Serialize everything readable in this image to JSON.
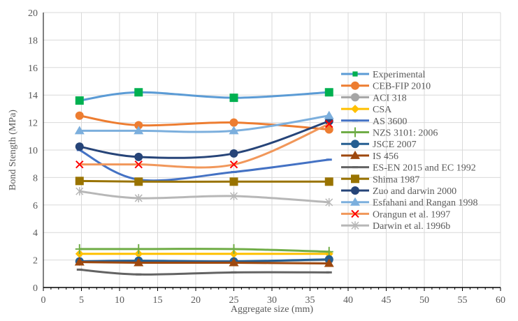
{
  "chart_data": {
    "type": "line",
    "xlabel": "Aggregate size (mm)",
    "ylabel": "Bond Stength (MPa)",
    "xlim": [
      0,
      60
    ],
    "ylim": [
      0,
      20
    ],
    "xticks": [
      0,
      5,
      10,
      15,
      20,
      25,
      30,
      35,
      40,
      45,
      50,
      55,
      60
    ],
    "yticks": [
      0,
      2,
      4,
      6,
      8,
      10,
      12,
      14,
      16,
      18,
      20
    ],
    "grid": true,
    "legend": "right",
    "x": [
      4.75,
      12.5,
      25,
      37.5
    ],
    "series": [
      {
        "name": "Experimental",
        "values": [
          13.6,
          14.2,
          13.8,
          14.2
        ],
        "color": "#5b9bd5",
        "marker": "square",
        "marker_color": "#00b050"
      },
      {
        "name": "CEB-FIP 2010",
        "values": [
          12.5,
          11.8,
          12.0,
          11.5
        ],
        "color": "#ed7d31",
        "marker": "circle"
      },
      {
        "name": "ACI 318",
        "values": [
          1.9,
          1.95,
          1.9,
          2.0
        ],
        "color": "#a5a5a5",
        "marker": "circle"
      },
      {
        "name": "CSA",
        "values": [
          2.45,
          2.45,
          2.45,
          2.45
        ],
        "color": "#ffc000",
        "marker": "diamond"
      },
      {
        "name": "AS 3600",
        "values": [
          10.0,
          7.85,
          8.4,
          9.3
        ],
        "color": "#4472c4",
        "marker": "dash"
      },
      {
        "name": "NZS 3101: 2006",
        "values": [
          2.8,
          2.8,
          2.8,
          2.6
        ],
        "color": "#70ad47",
        "marker": "plus"
      },
      {
        "name": "JSCE 2007",
        "values": [
          1.9,
          1.95,
          1.9,
          2.05
        ],
        "color": "#255e91",
        "marker": "circle"
      },
      {
        "name": "IS 456",
        "values": [
          1.85,
          1.8,
          1.8,
          1.75
        ],
        "color": "#9e480e",
        "marker": "triangle"
      },
      {
        "name": "ES-EN 2015 and EC 1992",
        "values": [
          1.3,
          0.95,
          1.1,
          1.1
        ],
        "color": "#636363",
        "marker": "dash"
      },
      {
        "name": "Shima 1987",
        "values": [
          7.75,
          7.7,
          7.7,
          7.7
        ],
        "color": "#997300",
        "marker": "square"
      },
      {
        "name": "Zuo and darwin 2000",
        "values": [
          10.25,
          9.5,
          9.75,
          12.1
        ],
        "color": "#264478",
        "marker": "circle"
      },
      {
        "name": "Esfahani and Rangan 1998",
        "values": [
          11.4,
          11.4,
          11.4,
          12.5
        ],
        "color": "#7cafdd",
        "marker": "triangle"
      },
      {
        "name": "Orangun et al. 1997",
        "values": [
          8.95,
          8.95,
          8.95,
          11.9
        ],
        "color": "#f1975a",
        "marker": "x",
        "marker_color": "#ff0000"
      },
      {
        "name": "Darwin et al. 1996b",
        "values": [
          7.0,
          6.5,
          6.65,
          6.2
        ],
        "color": "#b7b7b7",
        "marker": "star"
      }
    ]
  }
}
